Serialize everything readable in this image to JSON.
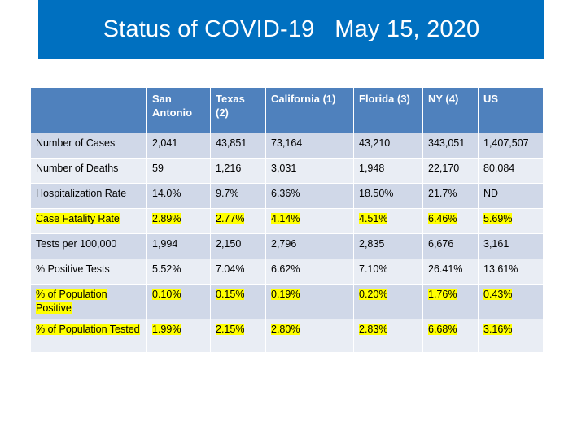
{
  "title": "Status of COVID-19   May 15, 2020",
  "table": {
    "columns": [
      "",
      "San Antonio",
      "Texas (2)",
      "California (1)",
      "Florida (3)",
      "NY (4)",
      "US"
    ],
    "rows": [
      {
        "label": "Number of Cases",
        "values": [
          "2,041",
          "43,851",
          "73,164",
          "43,210",
          "343,051",
          "1,407,507"
        ],
        "highlight": false
      },
      {
        "label": "Number of Deaths",
        "values": [
          "59",
          "1,216",
          "3,031",
          "1,948",
          "22,170",
          "80,084"
        ],
        "highlight": false
      },
      {
        "label": "Hospitalization Rate",
        "values": [
          "14.0%",
          "9.7%",
          "6.36%",
          "18.50%",
          "21.7%",
          "ND"
        ],
        "highlight": false
      },
      {
        "label": "Case Fatality Rate",
        "values": [
          "2.89%",
          "2.77%",
          "4.14%",
          "4.51%",
          "6.46%",
          "5.69%"
        ],
        "highlight": true
      },
      {
        "label": "Tests per 100,000",
        "values": [
          "1,994",
          "2,150",
          "2,796",
          "2,835",
          "6,676",
          "3,161"
        ],
        "highlight": false
      },
      {
        "label": "% Positive Tests",
        "values": [
          "5.52%",
          "7.04%",
          "6.62%",
          "7.10%",
          "26.41%",
          "13.61%"
        ],
        "highlight": false
      },
      {
        "label": "% of Population Positive",
        "values": [
          "0.10%",
          "0.15%",
          "0.19%",
          "0.20%",
          "1.76%",
          "0.43%"
        ],
        "highlight": true
      },
      {
        "label": "% of Population Tested",
        "values": [
          "1.99%",
          "2.15%",
          "2.80%",
          "2.83%",
          "6.68%",
          "3.16%"
        ],
        "highlight": true
      }
    ]
  },
  "colors": {
    "title_bar": "#0070c0",
    "header": "#4f81bd",
    "row_dark": "#d0d8e8",
    "row_light": "#e9edf4",
    "highlight": "#ffff00"
  }
}
